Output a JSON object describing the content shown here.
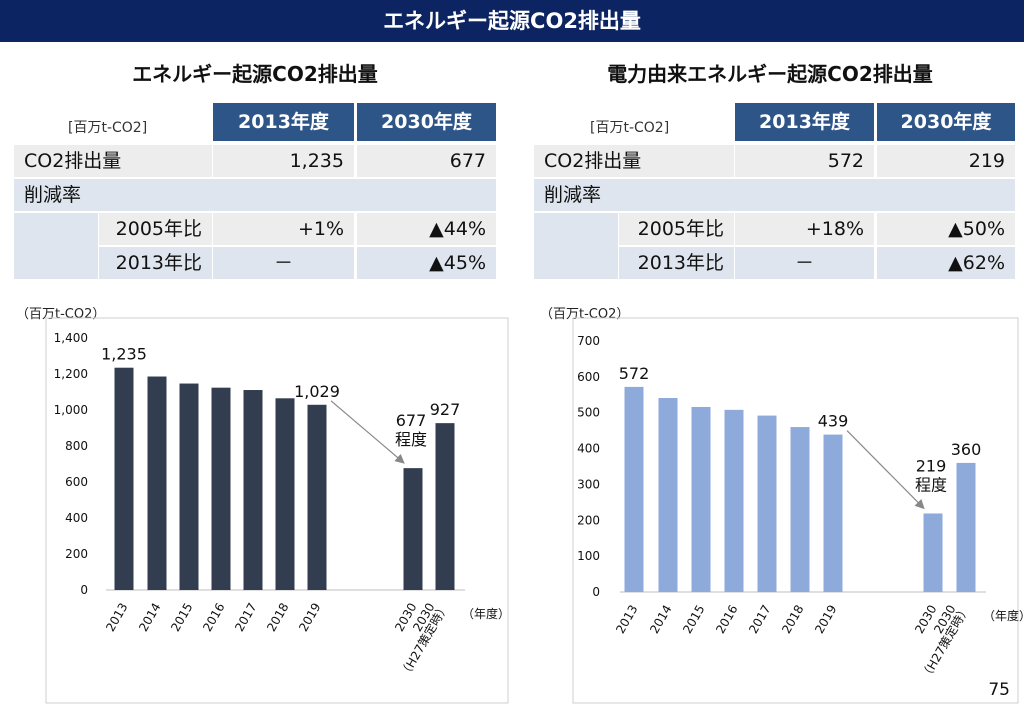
{
  "header": {
    "title": "エネルギー起源CO2排出量"
  },
  "left_table": {
    "title": "エネルギー起源CO2排出量",
    "unit": "[百万t-CO2]",
    "col1": "2013年度",
    "col2": "2030年度",
    "row_emission_label": "CO2排出量",
    "row_emission_v1": "1,235",
    "row_emission_v2": "677",
    "row_reduction_label": "削減率",
    "row_2005_label": "2005年比",
    "row_2005_v1": "+1%",
    "row_2005_v2": "▲44%",
    "row_2013_label": "2013年比",
    "row_2013_v1": "－",
    "row_2013_v2": "▲45%"
  },
  "right_table": {
    "title": "電力由来エネルギー起源CO2排出量",
    "unit": "[百万t-CO2]",
    "col1": "2013年度",
    "col2": "2030年度",
    "row_emission_label": "CO2排出量",
    "row_emission_v1": "572",
    "row_emission_v2": "219",
    "row_reduction_label": "削減率",
    "row_2005_label": "2005年比",
    "row_2005_v1": "+18%",
    "row_2005_v2": "▲50%",
    "row_2013_label": "2013年比",
    "row_2013_v1": "－",
    "row_2013_v2": "▲62%"
  },
  "page_number": "75",
  "chart_data": [
    {
      "type": "bar",
      "unit_label": "（百万t-CO2）",
      "x_unit": "（年度）",
      "categories": [
        "2013",
        "2014",
        "2015",
        "2016",
        "2017",
        "2018",
        "2019",
        "2030",
        "2030（H27策定時）"
      ],
      "category_labels": [
        [
          "2013"
        ],
        [
          "2014"
        ],
        [
          "2015"
        ],
        [
          "2016"
        ],
        [
          "2017"
        ],
        [
          "2018"
        ],
        [
          "2019"
        ],
        [
          "2030"
        ],
        [
          "（H27策定時）"
        ]
      ],
      "values": [
        1235,
        1186,
        1147,
        1124,
        1111,
        1065,
        1029,
        677,
        927
      ],
      "data_labels": [
        {
          "index": 0,
          "text": "1,235"
        },
        {
          "index": 6,
          "text": "1,029"
        },
        {
          "index": 7,
          "text": "677",
          "sub": "程度"
        },
        {
          "index": 8,
          "text": "927"
        }
      ],
      "ylim": [
        0,
        1400
      ],
      "yticks": [
        0,
        200,
        400,
        600,
        800,
        1000,
        1200,
        1400
      ],
      "ytick_labels": [
        "0",
        "200",
        "400",
        "600",
        "800",
        "1,000",
        "1,200",
        "1,400"
      ],
      "color": "#323e4f"
    },
    {
      "type": "bar",
      "unit_label": "（百万t-CO2）",
      "x_unit": "（年度）",
      "categories": [
        "2013",
        "2014",
        "2015",
        "2016",
        "2017",
        "2018",
        "2019",
        "2030",
        "2030（H27策定時）"
      ],
      "category_labels": [
        [
          "2013"
        ],
        [
          "2014"
        ],
        [
          "2015"
        ],
        [
          "2016"
        ],
        [
          "2017"
        ],
        [
          "2018"
        ],
        [
          "2019"
        ],
        [
          "2030"
        ],
        [
          "（H27策定時）"
        ]
      ],
      "values": [
        572,
        541,
        516,
        508,
        492,
        460,
        439,
        219,
        360
      ],
      "data_labels": [
        {
          "index": 0,
          "text": "572"
        },
        {
          "index": 6,
          "text": "439"
        },
        {
          "index": 7,
          "text": "219",
          "sub": "程度"
        },
        {
          "index": 8,
          "text": "360"
        }
      ],
      "ylim": [
        0,
        700
      ],
      "yticks": [
        0,
        100,
        200,
        300,
        400,
        500,
        600,
        700
      ],
      "ytick_labels": [
        "0",
        "100",
        "200",
        "300",
        "400",
        "500",
        "600",
        "700"
      ],
      "color": "#8eaadb"
    }
  ]
}
